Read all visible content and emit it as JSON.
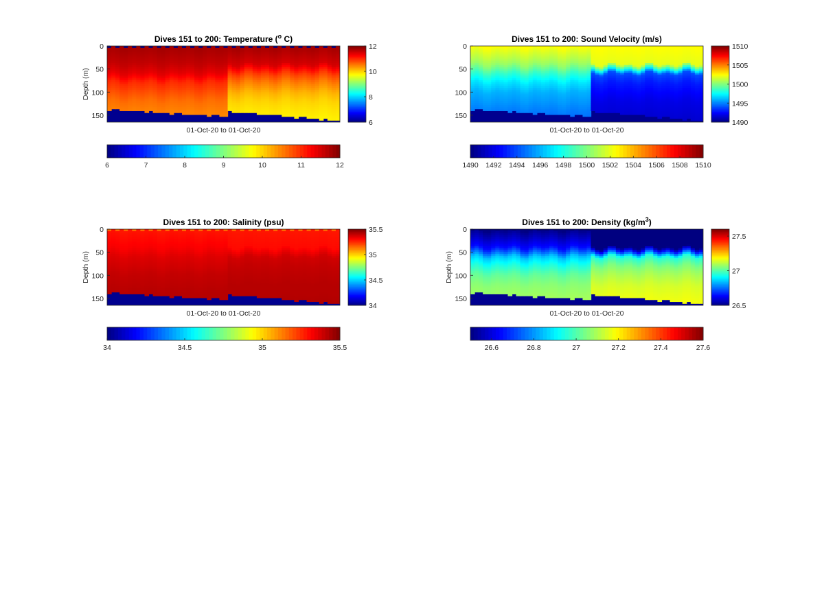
{
  "chart_data": [
    {
      "type": "heatmap",
      "variable": "temperature",
      "title": "Dives 151 to 200: Temperature (",
      "title_sup": "o",
      "title_suffix": " C)",
      "ylabel": "Depth (m)",
      "xlabel": "01-Oct-20 to 01-Oct-20",
      "y_ticks": [
        "0",
        "50",
        "100",
        "150"
      ],
      "ylim": [
        0,
        165
      ],
      "y_reversed": true,
      "clim": [
        6,
        12
      ],
      "side_ticks": [
        "6",
        "8",
        "10",
        "12"
      ],
      "bottom_ticks": [
        "6",
        "7",
        "8",
        "9",
        "10",
        "11",
        "12"
      ],
      "profile": [
        {
          "d": 0,
          "pre": 11.8,
          "post": 11.8
        },
        {
          "d": 40,
          "pre": 11.6,
          "post": 11.5
        },
        {
          "d": 60,
          "pre": 11.4,
          "post": 10.9
        },
        {
          "d": 80,
          "pre": 11.0,
          "post": 10.5
        },
        {
          "d": 100,
          "pre": 10.8,
          "post": 10.2
        },
        {
          "d": 120,
          "pre": 10.6,
          "post": 10.0
        },
        {
          "d": 140,
          "pre": 10.5,
          "post": 9.9
        },
        {
          "d": 165,
          "pre": 10.4,
          "post": 9.8
        }
      ],
      "surface_value": 6.0
    },
    {
      "type": "heatmap",
      "variable": "sound_velocity",
      "title": "Dives 151 to 200: Sound Velocity (m/s)",
      "ylabel": "",
      "xlabel": "01-Oct-20 to 01-Oct-20",
      "y_ticks": [
        "0",
        "50",
        "100",
        "150"
      ],
      "ylim": [
        0,
        165
      ],
      "y_reversed": true,
      "clim": [
        1490,
        1510
      ],
      "side_ticks": [
        "1490",
        "1495",
        "1500",
        "1505",
        "1510"
      ],
      "bottom_ticks": [
        "1490",
        "1492",
        "1494",
        "1496",
        "1498",
        "1500",
        "1502",
        "1504",
        "1506",
        "1508",
        "1510"
      ],
      "profile": [
        {
          "d": 0,
          "pre": 1502.5,
          "post": 1502.5
        },
        {
          "d": 40,
          "pre": 1500.5,
          "post": 1502.0
        },
        {
          "d": 60,
          "pre": 1498.5,
          "post": 1494.0
        },
        {
          "d": 80,
          "pre": 1497.0,
          "post": 1493.0
        },
        {
          "d": 100,
          "pre": 1496.0,
          "post": 1492.5
        },
        {
          "d": 120,
          "pre": 1495.5,
          "post": 1492.0
        },
        {
          "d": 140,
          "pre": 1495.0,
          "post": 1491.8
        },
        {
          "d": 165,
          "pre": 1494.5,
          "post": 1491.5
        }
      ],
      "surface_value": 1502.5
    },
    {
      "type": "heatmap",
      "variable": "salinity",
      "title": "Dives 151 to 200: Salinity (psu)",
      "ylabel": "Depth (m)",
      "xlabel": "01-Oct-20 to 01-Oct-20",
      "y_ticks": [
        "0",
        "50",
        "100",
        "150"
      ],
      "ylim": [
        0,
        165
      ],
      "y_reversed": true,
      "clim": [
        34,
        35.5
      ],
      "side_ticks": [
        "34",
        "34.5",
        "35",
        "35.5"
      ],
      "bottom_ticks": [
        "34",
        "34.5",
        "35",
        "35.5"
      ],
      "profile": [
        {
          "d": 0,
          "pre": 35.28,
          "post": 35.28
        },
        {
          "d": 40,
          "pre": 35.32,
          "post": 35.3
        },
        {
          "d": 60,
          "pre": 35.36,
          "post": 35.38
        },
        {
          "d": 80,
          "pre": 35.38,
          "post": 35.4
        },
        {
          "d": 100,
          "pre": 35.4,
          "post": 35.41
        },
        {
          "d": 120,
          "pre": 35.41,
          "post": 35.42
        },
        {
          "d": 140,
          "pre": 35.42,
          "post": 35.42
        },
        {
          "d": 165,
          "pre": 35.42,
          "post": 35.43
        }
      ],
      "surface_value": 35.15
    },
    {
      "type": "heatmap",
      "variable": "density",
      "title": "Dives 151 to 200: Density (kg/m",
      "title_sup": "3",
      "title_suffix": ")",
      "ylabel": "Depth (m)",
      "xlabel": "01-Oct-20 to 01-Oct-20",
      "y_ticks": [
        "0",
        "50",
        "100",
        "150"
      ],
      "ylim": [
        0,
        165
      ],
      "y_reversed": true,
      "clim": [
        26.5,
        27.6
      ],
      "side_ticks": [
        "26.5",
        "27",
        "27.5"
      ],
      "bottom_ticks": [
        "26.6",
        "26.8",
        "27",
        "27.2",
        "27.4",
        "27.6"
      ],
      "profile": [
        {
          "d": 0,
          "pre": 26.5,
          "post": 26.5
        },
        {
          "d": 40,
          "pre": 26.65,
          "post": 26.5
        },
        {
          "d": 60,
          "pre": 26.85,
          "post": 26.95
        },
        {
          "d": 80,
          "pre": 26.95,
          "post": 27.05
        },
        {
          "d": 100,
          "pre": 27.02,
          "post": 27.1
        },
        {
          "d": 120,
          "pre": 27.06,
          "post": 27.14
        },
        {
          "d": 140,
          "pre": 27.08,
          "post": 27.16
        },
        {
          "d": 165,
          "pre": 27.1,
          "post": 27.18
        }
      ],
      "surface_value": 26.5
    }
  ]
}
